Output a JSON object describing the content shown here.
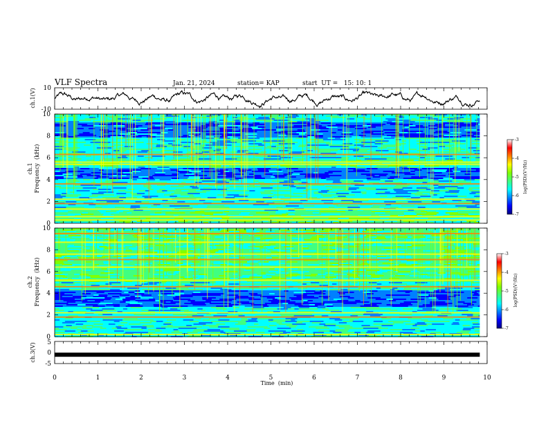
{
  "header": {
    "title": "VLF Spectra",
    "date": "Jan. 21, 2024",
    "station": "station= KAP",
    "start_ut": "start  UT =   15: 10: 1"
  },
  "chart_data": [
    {
      "type": "line",
      "panel": "ch.1 waveform",
      "ylabel": "ch.1(V)",
      "ylim": [
        -10,
        10
      ],
      "yticks": [
        "10",
        "-10"
      ],
      "xlim": [
        0,
        10
      ],
      "x_extent_end": 9.83,
      "grid": false,
      "series_color": "#000000"
    },
    {
      "type": "heatmap",
      "panel": "ch.1 spectrogram",
      "ylabel_line1": "ch.1",
      "ylabel_line2": "Frequency  (kHz)",
      "ylim": [
        0,
        10
      ],
      "yticks": [
        "0",
        "2",
        "4",
        "6",
        "8",
        "10"
      ],
      "xlim": [
        0,
        10
      ],
      "x_extent_end": 9.83,
      "colorbar": {
        "label": "log(PSD)(V²/Hz)",
        "range": [
          -7,
          -3
        ],
        "ticks": [
          "-3",
          "-4",
          "-5",
          "-6",
          "-7"
        ]
      },
      "strong_lines_khz": [
        0.3,
        0.6,
        1.3,
        1.8,
        2.2,
        3.6,
        5.4,
        5.6,
        6.3
      ],
      "quiet_bands_khz": [
        [
          4.0,
          5.0
        ],
        [
          7.8,
          9.2
        ]
      ],
      "active_bands_khz": [
        [
          0.0,
          1.2
        ],
        [
          5.2,
          5.8
        ]
      ]
    },
    {
      "type": "heatmap",
      "panel": "ch.2 spectrogram",
      "ylabel_line1": "ch.2",
      "ylabel_line2": "Frequency  (kHz)",
      "ylim": [
        0,
        10
      ],
      "yticks": [
        "0",
        "2",
        "4",
        "6",
        "8",
        "10"
      ],
      "xlim": [
        0,
        10
      ],
      "x_extent_end": 9.83,
      "colorbar": {
        "label": "log(PSD)(V²/Hz)",
        "range": [
          -7,
          -3
        ],
        "ticks": [
          "-3",
          "-4",
          "-5",
          "-6",
          "-7"
        ]
      },
      "strong_lines_khz": [
        0.2,
        1.8,
        2.2,
        4.6,
        5.2,
        6.4,
        7.1,
        7.6,
        8.7,
        9.5
      ],
      "quiet_bands_khz": [
        [
          2.8,
          4.3
        ]
      ],
      "active_bands_khz": [
        [
          5.0,
          10.0
        ]
      ]
    },
    {
      "type": "line",
      "panel": "ch.3 waveform",
      "ylabel": "ch.3(V)",
      "ylim": [
        -5,
        5
      ],
      "yticks": [
        "5",
        "0",
        "-5"
      ],
      "xlim": [
        0,
        10
      ],
      "x_extent_end": 9.83,
      "constant_level_v": -1.0,
      "xlabel": "Time  (min)",
      "xticks": [
        "0",
        "1",
        "2",
        "3",
        "4",
        "5",
        "6",
        "7",
        "8",
        "9",
        "10"
      ]
    }
  ],
  "colormap": [
    "#000080",
    "#0000ff",
    "#0080ff",
    "#00ffff",
    "#40ff80",
    "#80ff00",
    "#ffff00",
    "#ff8000",
    "#ff0000",
    "#ffffff"
  ]
}
